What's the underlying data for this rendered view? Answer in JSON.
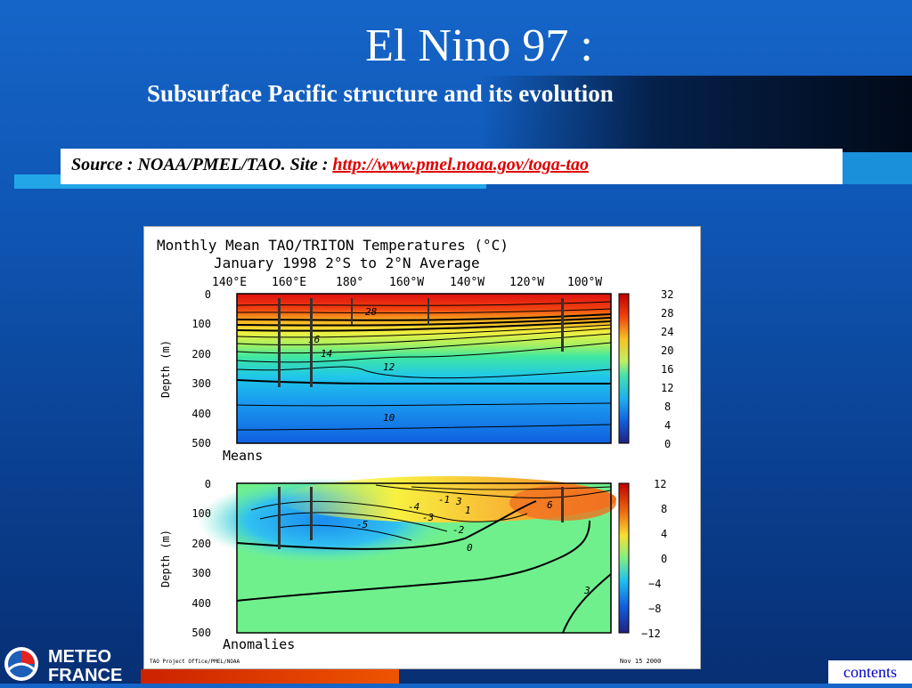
{
  "slide": {
    "title": "El Nino 97 :",
    "subtitle": "Subsurface Pacific structure and its evolution",
    "source_label": "Source : NOAA/PMEL/TAO.  Site : ",
    "source_link": "http://www.pmel.noaa.gov/toga-tao",
    "contents_button": "contents"
  },
  "logo": {
    "line1": "METEO",
    "line2": "FRANCE"
  },
  "figure": {
    "title_line1": "Monthly Mean TAO/TRITON Temperatures (°C)",
    "title_line2": "January 1998    2°S to 2°N Average",
    "lon_labels": [
      "140°E",
      "160°E",
      "180°",
      "160°W",
      "140°W",
      "120°W",
      "100°W"
    ],
    "depth_label": "Depth (m)",
    "depth_ticks": [
      "0",
      "100",
      "200",
      "300",
      "400",
      "500"
    ],
    "means_label": "Means",
    "anomalies_label": "Anomalies",
    "means_colorbar": [
      "32",
      "28",
      "24",
      "20",
      "16",
      "12",
      "8",
      "4",
      "0"
    ],
    "anom_colorbar": [
      "12",
      "8",
      "4",
      "0",
      "−4",
      "−8",
      "−12"
    ],
    "means_contour_labels": [
      "28",
      "16",
      "14",
      "12",
      "10"
    ],
    "anom_contour_labels": [
      "-5",
      "-4",
      "-3",
      "-2",
      "-1",
      "0",
      "1",
      "3",
      "6",
      "3"
    ],
    "footer_left": "TAO Project Office/PMEL/NOAA",
    "footer_right": "Nov 15 2000"
  }
}
